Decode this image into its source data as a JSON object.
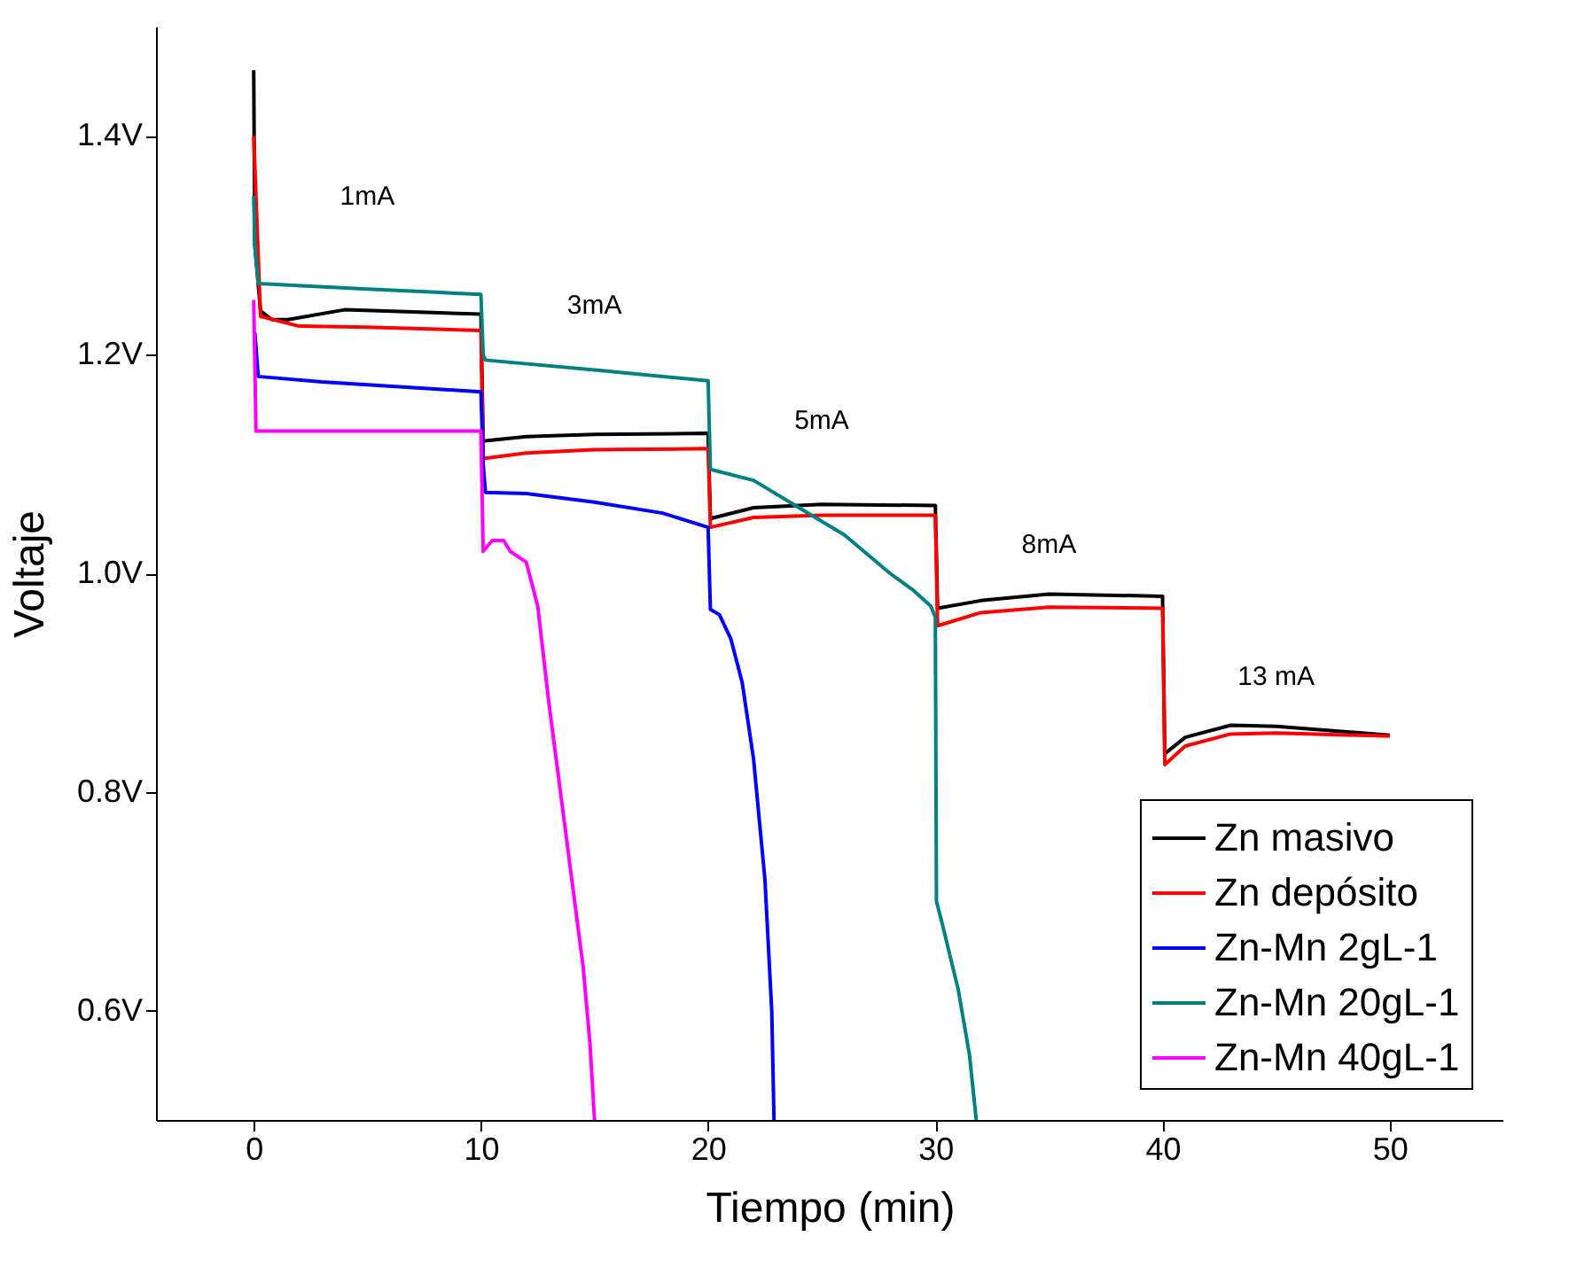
{
  "chart_data": {
    "type": "line",
    "xlabel": "Tiempo (min)",
    "ylabel": "Voltaje",
    "xlim": [
      -4.3,
      55
    ],
    "xticks": [
      0,
      10,
      20,
      30,
      40,
      50
    ],
    "ylim": [
      0.5,
      1.5
    ],
    "yticks": [
      {
        "value": 0.6,
        "label": "0.6V"
      },
      {
        "value": 0.8,
        "label": "0.8V"
      },
      {
        "value": 1.0,
        "label": "1.0V"
      },
      {
        "value": 1.2,
        "label": "1.2V"
      },
      {
        "value": 1.4,
        "label": "1.4V"
      }
    ],
    "grid": false,
    "legend": "bottom right",
    "line_style": "solid",
    "marker": "none",
    "series": [
      {
        "name": "Zn masivo",
        "color": "#000000",
        "x": [
          0,
          0.05,
          0.3,
          0.8,
          1.5,
          4,
          7,
          10,
          10.1,
          12,
          15,
          20,
          20.1,
          22,
          25,
          30,
          30.1,
          32,
          35,
          40,
          40.1,
          41,
          43,
          45,
          50
        ],
        "values": [
          1.46,
          1.3,
          1.24,
          1.232,
          1.232,
          1.241,
          1.239,
          1.237,
          1.121,
          1.125,
          1.127,
          1.128,
          1.05,
          1.06,
          1.063,
          1.062,
          0.968,
          0.975,
          0.981,
          0.979,
          0.835,
          0.85,
          0.861,
          0.86,
          0.852
        ]
      },
      {
        "name": "Zn depósito",
        "color": "#ff0000",
        "x": [
          0,
          0.3,
          2,
          5,
          10,
          10.1,
          12,
          15,
          20,
          20.1,
          22,
          25,
          30,
          30.1,
          32,
          35,
          40,
          40.1,
          41,
          43,
          45,
          50
        ],
        "values": [
          1.4,
          1.235,
          1.226,
          1.225,
          1.222,
          1.105,
          1.11,
          1.113,
          1.114,
          1.042,
          1.051,
          1.053,
          1.053,
          0.952,
          0.964,
          0.969,
          0.968,
          0.825,
          0.842,
          0.853,
          0.854,
          0.851
        ]
      },
      {
        "name": "Zn-Mn 2gL-1",
        "color": "#0000ff",
        "x": [
          0.05,
          0.2,
          3,
          10,
          10.1,
          10.2,
          12,
          15,
          18,
          20,
          20.1,
          20.5,
          21,
          21.5,
          22,
          22.5,
          22.8,
          22.9
        ],
        "values": [
          1.22,
          1.18,
          1.175,
          1.166,
          1.1,
          1.074,
          1.073,
          1.065,
          1.055,
          1.042,
          0.967,
          0.962,
          0.94,
          0.9,
          0.83,
          0.72,
          0.6,
          0.5
        ]
      },
      {
        "name": "Zn-Mn 20gL-1",
        "color": "#008080",
        "x": [
          0,
          0.05,
          0.2,
          5,
          8,
          10,
          10.1,
          10.2,
          15,
          20,
          20.1,
          22,
          24,
          26,
          28,
          29,
          29.8,
          30,
          30.05,
          30.3,
          31,
          31.5,
          31.8
        ],
        "values": [
          1.345,
          1.3,
          1.265,
          1.26,
          1.257,
          1.255,
          1.2,
          1.195,
          1.186,
          1.176,
          1.095,
          1.085,
          1.06,
          1.035,
          1.0,
          0.985,
          0.97,
          0.96,
          0.7,
          0.68,
          0.62,
          0.56,
          0.5
        ]
      },
      {
        "name": "Zn-Mn 40gL-1",
        "color": "#ff00ff",
        "x": [
          0,
          0.1,
          10,
          10.1,
          10.5,
          11,
          11.3,
          12,
          12.5,
          13,
          13.5,
          14,
          14.5,
          14.8,
          15
        ],
        "values": [
          1.25,
          1.13,
          1.13,
          1.02,
          1.03,
          1.03,
          1.02,
          1.01,
          0.97,
          0.88,
          0.8,
          0.72,
          0.64,
          0.57,
          0.5
        ]
      }
    ],
    "annotations": [
      "1mA",
      "3mA",
      "5mA",
      "8mA",
      "13 mA"
    ]
  }
}
